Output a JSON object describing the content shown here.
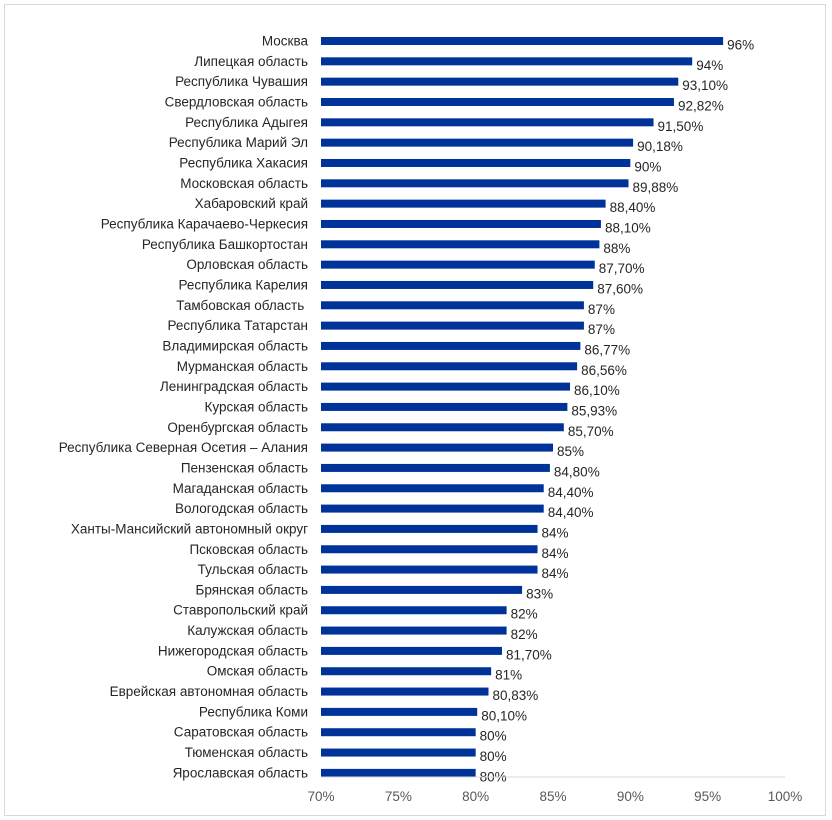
{
  "chart_data": {
    "type": "bar",
    "orientation": "horizontal",
    "title": "",
    "xlabel": "",
    "ylabel": "",
    "xlim": [
      70,
      100
    ],
    "bar_color": "#003399",
    "grid": false,
    "categories": [
      "Москва",
      "Липецкая область",
      "Республика Чувашия",
      "Свердловская область",
      "Республика Адыгея",
      "Республика Марий Эл",
      "Республика Хакасия",
      "Московская область",
      "Хабаровский край",
      "Республика Карачаево-Черкесия",
      "Республика Башкортостан",
      "Орловская область",
      "Республика Карелия",
      "Тамбовская область ",
      "Республика Татарстан",
      "Владимирская область",
      "Мурманская область",
      "Ленинградская область",
      "Курская область",
      "Оренбургская область",
      "Республика Северная Осетия – Алания",
      "Пензенская область",
      "Магаданская область",
      "Вологодская область",
      "Ханты-Мансийский автономный округ",
      "Псковская область",
      "Тульская область",
      "Брянская область",
      "Ставропольский край",
      "Калужская область",
      "Нижегородская область",
      "Омская область",
      "Еврейская автономная область",
      "Республика Коми",
      "Саратовская область",
      "Тюменская область",
      "Ярославская область"
    ],
    "values": [
      96,
      94,
      93.1,
      92.82,
      91.5,
      90.18,
      90,
      89.88,
      88.4,
      88.1,
      88,
      87.7,
      87.6,
      87,
      87,
      86.77,
      86.56,
      86.1,
      85.93,
      85.7,
      85,
      84.8,
      84.4,
      84.4,
      84,
      84,
      84,
      83,
      82,
      82,
      81.7,
      81,
      80.83,
      80.1,
      80,
      80,
      80
    ],
    "value_labels": [
      "96%",
      "94%",
      "93,10%",
      "92,82%",
      "91,50%",
      "90,18%",
      "90%",
      "89,88%",
      "88,40%",
      "88,10%",
      "88%",
      "87,70%",
      "87,60%",
      "87%",
      "87%",
      "86,77%",
      "86,56%",
      "86,10%",
      "85,93%",
      "85,70%",
      "85%",
      "84,80%",
      "84,40%",
      "84,40%",
      "84%",
      "84%",
      "84%",
      "83%",
      "82%",
      "82%",
      "81,70%",
      "81%",
      "80,83%",
      "80,10%",
      "80%",
      "80%",
      "80%"
    ],
    "x_ticks": [
      70,
      75,
      80,
      85,
      90,
      95,
      100
    ],
    "x_tick_labels": [
      "70%",
      "75%",
      "80%",
      "85%",
      "90%",
      "95%",
      "100%"
    ]
  }
}
